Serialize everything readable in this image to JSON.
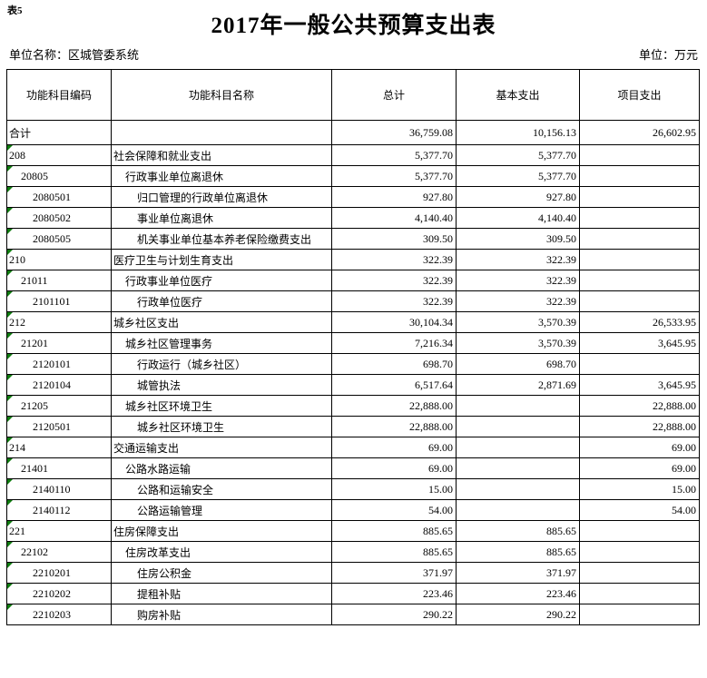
{
  "sheet_label": "表5",
  "title": "2017年一般公共预算支出表",
  "unit_name": "单位名称：区城管委系统",
  "unit_measure": "单位：万元",
  "colors": {
    "background": "#ffffff",
    "text": "#000000",
    "border": "#000000",
    "error_marker_green": "#107c10"
  },
  "table": {
    "columns": [
      "功能科目编码",
      "功能科目名称",
      "总计",
      "基本支出",
      "项目支出"
    ],
    "rows": [
      {
        "code": "合计",
        "name": "",
        "total": "36,759.08",
        "basic": "10,156.13",
        "project": "26,602.95",
        "level": 0,
        "error_marker": false
      },
      {
        "code": "208",
        "name": "社会保障和就业支出",
        "total": "5,377.70",
        "basic": "5,377.70",
        "project": "",
        "level": 0,
        "error_marker": true
      },
      {
        "code": "20805",
        "name": "行政事业单位离退休",
        "total": "5,377.70",
        "basic": "5,377.70",
        "project": "",
        "level": 1,
        "error_marker": true
      },
      {
        "code": "2080501",
        "name": "归口管理的行政单位离退休",
        "total": "927.80",
        "basic": "927.80",
        "project": "",
        "level": 2,
        "error_marker": true
      },
      {
        "code": "2080502",
        "name": "事业单位离退休",
        "total": "4,140.40",
        "basic": "4,140.40",
        "project": "",
        "level": 2,
        "error_marker": true
      },
      {
        "code": "2080505",
        "name": "机关事业单位基本养老保险缴费支出",
        "total": "309.50",
        "basic": "309.50",
        "project": "",
        "level": 2,
        "error_marker": true
      },
      {
        "code": "210",
        "name": "医疗卫生与计划生育支出",
        "total": "322.39",
        "basic": "322.39",
        "project": "",
        "level": 0,
        "error_marker": true
      },
      {
        "code": "21011",
        "name": "行政事业单位医疗",
        "total": "322.39",
        "basic": "322.39",
        "project": "",
        "level": 1,
        "error_marker": true
      },
      {
        "code": "2101101",
        "name": "行政单位医疗",
        "total": "322.39",
        "basic": "322.39",
        "project": "",
        "level": 2,
        "error_marker": true
      },
      {
        "code": "212",
        "name": "城乡社区支出",
        "total": "30,104.34",
        "basic": "3,570.39",
        "project": "26,533.95",
        "level": 0,
        "error_marker": true
      },
      {
        "code": "21201",
        "name": "城乡社区管理事务",
        "total": "7,216.34",
        "basic": "3,570.39",
        "project": "3,645.95",
        "level": 1,
        "error_marker": true
      },
      {
        "code": "2120101",
        "name": "行政运行（城乡社区）",
        "total": "698.70",
        "basic": "698.70",
        "project": "",
        "level": 2,
        "error_marker": true
      },
      {
        "code": "2120104",
        "name": "城管执法",
        "total": "6,517.64",
        "basic": "2,871.69",
        "project": "3,645.95",
        "level": 2,
        "error_marker": true
      },
      {
        "code": "21205",
        "name": "城乡社区环境卫生",
        "total": "22,888.00",
        "basic": "",
        "project": "22,888.00",
        "level": 1,
        "error_marker": true
      },
      {
        "code": "2120501",
        "name": "城乡社区环境卫生",
        "total": "22,888.00",
        "basic": "",
        "project": "22,888.00",
        "level": 2,
        "error_marker": true
      },
      {
        "code": "214",
        "name": "交通运输支出",
        "total": "69.00",
        "basic": "",
        "project": "69.00",
        "level": 0,
        "error_marker": true
      },
      {
        "code": "21401",
        "name": "公路水路运输",
        "total": "69.00",
        "basic": "",
        "project": "69.00",
        "level": 1,
        "error_marker": true
      },
      {
        "code": "2140110",
        "name": "公路和运输安全",
        "total": "15.00",
        "basic": "",
        "project": "15.00",
        "level": 2,
        "error_marker": true
      },
      {
        "code": "2140112",
        "name": "公路运输管理",
        "total": "54.00",
        "basic": "",
        "project": "54.00",
        "level": 2,
        "error_marker": true
      },
      {
        "code": "221",
        "name": "住房保障支出",
        "total": "885.65",
        "basic": "885.65",
        "project": "",
        "level": 0,
        "error_marker": true
      },
      {
        "code": "22102",
        "name": "住房改革支出",
        "total": "885.65",
        "basic": "885.65",
        "project": "",
        "level": 1,
        "error_marker": true
      },
      {
        "code": "2210201",
        "name": "住房公积金",
        "total": "371.97",
        "basic": "371.97",
        "project": "",
        "level": 2,
        "error_marker": true
      },
      {
        "code": "2210202",
        "name": "提租补贴",
        "total": "223.46",
        "basic": "223.46",
        "project": "",
        "level": 2,
        "error_marker": true
      },
      {
        "code": "2210203",
        "name": "购房补贴",
        "total": "290.22",
        "basic": "290.22",
        "project": "",
        "level": 2,
        "error_marker": true
      }
    ]
  }
}
